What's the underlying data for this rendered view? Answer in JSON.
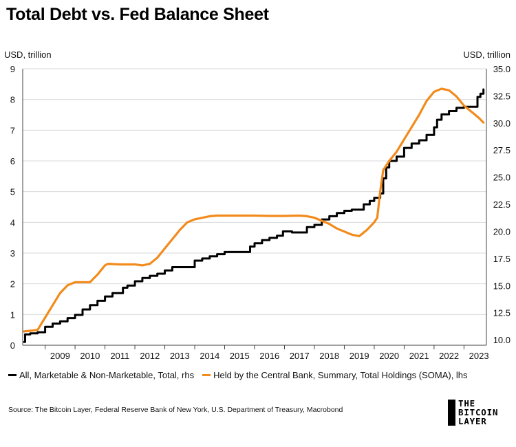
{
  "title": "Total Debt vs. Fed Balance Sheet",
  "left_unit": "USD, trillion",
  "right_unit": "USD, trillion",
  "source": "Source: The Bitcoin Layer, Federal Reserve Bank of New York, U.S. Department of Treasury, Macrobond",
  "brand": {
    "line1": "THE",
    "line2": "BITCOIN",
    "line3": "LAYER"
  },
  "colors": {
    "debt": "#000000",
    "soma": "#f28a1c",
    "grid": "#d9d9d9",
    "axis": "#444444"
  },
  "legend": [
    {
      "label": "All, Marketable & Non-Marketable, Total, rhs",
      "color": "#000000"
    },
    {
      "label": "Held by the Central Bank, Summary, Total Holdings (SOMA), lhs",
      "color": "#f28a1c"
    }
  ],
  "chart_data": {
    "type": "line",
    "grid": true,
    "legend_position": "bottom",
    "x_range": [
      2008.25,
      2023.75
    ],
    "x_ticks": [
      "2009",
      "2010",
      "2011",
      "2012",
      "2013",
      "2014",
      "2015",
      "2016",
      "2017",
      "2018",
      "2019",
      "2020",
      "2021",
      "2022",
      "2023"
    ],
    "y_left": {
      "label": "USD, trillion",
      "range": [
        0,
        9
      ],
      "ticks": [
        "0",
        "1",
        "2",
        "3",
        "4",
        "5",
        "6",
        "7",
        "8",
        "9"
      ]
    },
    "y_right": {
      "label": "USD, trillion",
      "range": [
        9.5,
        35.0
      ],
      "ticks": [
        "10.0",
        "12.5",
        "15.0",
        "17.5",
        "20.0",
        "22.5",
        "25.0",
        "27.5",
        "30.0",
        "32.5",
        "35.0"
      ]
    },
    "series": [
      {
        "name": "All, Marketable & Non-Marketable, Total, rhs",
        "axis": "right",
        "color": "#000000",
        "step": true,
        "points": [
          [
            2008.3,
            9.8
          ],
          [
            2008.33,
            10.5
          ],
          [
            2008.5,
            10.6
          ],
          [
            2008.75,
            10.7
          ],
          [
            2009.0,
            11.2
          ],
          [
            2009.25,
            11.5
          ],
          [
            2009.5,
            11.7
          ],
          [
            2009.75,
            12.0
          ],
          [
            2010.0,
            12.3
          ],
          [
            2010.25,
            12.8
          ],
          [
            2010.5,
            13.2
          ],
          [
            2010.75,
            13.6
          ],
          [
            2011.0,
            14.0
          ],
          [
            2011.25,
            14.3
          ],
          [
            2011.5,
            14.3
          ],
          [
            2011.6,
            14.8
          ],
          [
            2011.75,
            15.0
          ],
          [
            2012.0,
            15.4
          ],
          [
            2012.25,
            15.7
          ],
          [
            2012.5,
            15.9
          ],
          [
            2012.75,
            16.1
          ],
          [
            2013.0,
            16.4
          ],
          [
            2013.25,
            16.7
          ],
          [
            2013.5,
            16.7
          ],
          [
            2013.8,
            16.7
          ],
          [
            2014.0,
            17.3
          ],
          [
            2014.25,
            17.5
          ],
          [
            2014.5,
            17.7
          ],
          [
            2014.75,
            17.9
          ],
          [
            2015.0,
            18.1
          ],
          [
            2015.4,
            18.1
          ],
          [
            2015.75,
            18.1
          ],
          [
            2015.85,
            18.6
          ],
          [
            2016.0,
            18.9
          ],
          [
            2016.25,
            19.2
          ],
          [
            2016.5,
            19.4
          ],
          [
            2016.75,
            19.6
          ],
          [
            2016.95,
            20.0
          ],
          [
            2017.25,
            19.9
          ],
          [
            2017.65,
            19.9
          ],
          [
            2017.75,
            20.4
          ],
          [
            2018.0,
            20.6
          ],
          [
            2018.25,
            21.1
          ],
          [
            2018.5,
            21.4
          ],
          [
            2018.75,
            21.7
          ],
          [
            2019.0,
            21.9
          ],
          [
            2019.25,
            22.0
          ],
          [
            2019.5,
            22.0
          ],
          [
            2019.65,
            22.5
          ],
          [
            2019.85,
            22.8
          ],
          [
            2020.0,
            23.1
          ],
          [
            2020.2,
            23.5
          ],
          [
            2020.3,
            24.9
          ],
          [
            2020.4,
            25.9
          ],
          [
            2020.5,
            26.5
          ],
          [
            2020.75,
            26.9
          ],
          [
            2021.0,
            27.7
          ],
          [
            2021.25,
            28.1
          ],
          [
            2021.5,
            28.4
          ],
          [
            2021.75,
            28.9
          ],
          [
            2022.0,
            29.6
          ],
          [
            2022.1,
            30.3
          ],
          [
            2022.25,
            30.8
          ],
          [
            2022.5,
            31.1
          ],
          [
            2022.75,
            31.4
          ],
          [
            2023.0,
            31.5
          ],
          [
            2023.4,
            31.5
          ],
          [
            2023.45,
            32.4
          ],
          [
            2023.55,
            32.7
          ],
          [
            2023.65,
            33.1
          ]
        ]
      },
      {
        "name": "Held by the Central Bank, Summary, Total Holdings (SOMA), lhs",
        "axis": "left",
        "color": "#f28a1c",
        "step": false,
        "points": [
          [
            2008.3,
            0.45
          ],
          [
            2008.5,
            0.47
          ],
          [
            2008.75,
            0.5
          ],
          [
            2009.0,
            0.9
          ],
          [
            2009.25,
            1.3
          ],
          [
            2009.5,
            1.7
          ],
          [
            2009.75,
            1.95
          ],
          [
            2010.0,
            2.05
          ],
          [
            2010.25,
            2.05
          ],
          [
            2010.5,
            2.05
          ],
          [
            2010.75,
            2.3
          ],
          [
            2011.0,
            2.6
          ],
          [
            2011.1,
            2.65
          ],
          [
            2011.5,
            2.63
          ],
          [
            2011.75,
            2.63
          ],
          [
            2012.0,
            2.63
          ],
          [
            2012.25,
            2.6
          ],
          [
            2012.5,
            2.65
          ],
          [
            2012.75,
            2.85
          ],
          [
            2013.0,
            3.15
          ],
          [
            2013.25,
            3.45
          ],
          [
            2013.5,
            3.75
          ],
          [
            2013.75,
            4.0
          ],
          [
            2014.0,
            4.1
          ],
          [
            2014.5,
            4.2
          ],
          [
            2014.75,
            4.22
          ],
          [
            2015.5,
            4.22
          ],
          [
            2016.0,
            4.22
          ],
          [
            2016.5,
            4.21
          ],
          [
            2017.0,
            4.21
          ],
          [
            2017.5,
            4.22
          ],
          [
            2017.75,
            4.2
          ],
          [
            2018.0,
            4.15
          ],
          [
            2018.25,
            4.05
          ],
          [
            2018.5,
            3.95
          ],
          [
            2018.75,
            3.8
          ],
          [
            2019.0,
            3.7
          ],
          [
            2019.25,
            3.6
          ],
          [
            2019.5,
            3.55
          ],
          [
            2019.75,
            3.75
          ],
          [
            2020.0,
            4.0
          ],
          [
            2020.1,
            4.15
          ],
          [
            2020.2,
            5.0
          ],
          [
            2020.3,
            5.7
          ],
          [
            2020.5,
            6.0
          ],
          [
            2020.75,
            6.3
          ],
          [
            2021.0,
            6.7
          ],
          [
            2021.25,
            7.1
          ],
          [
            2021.5,
            7.5
          ],
          [
            2021.75,
            7.95
          ],
          [
            2022.0,
            8.25
          ],
          [
            2022.25,
            8.35
          ],
          [
            2022.5,
            8.3
          ],
          [
            2022.75,
            8.1
          ],
          [
            2023.0,
            7.8
          ],
          [
            2023.25,
            7.6
          ],
          [
            2023.5,
            7.4
          ],
          [
            2023.65,
            7.25
          ]
        ]
      }
    ]
  }
}
